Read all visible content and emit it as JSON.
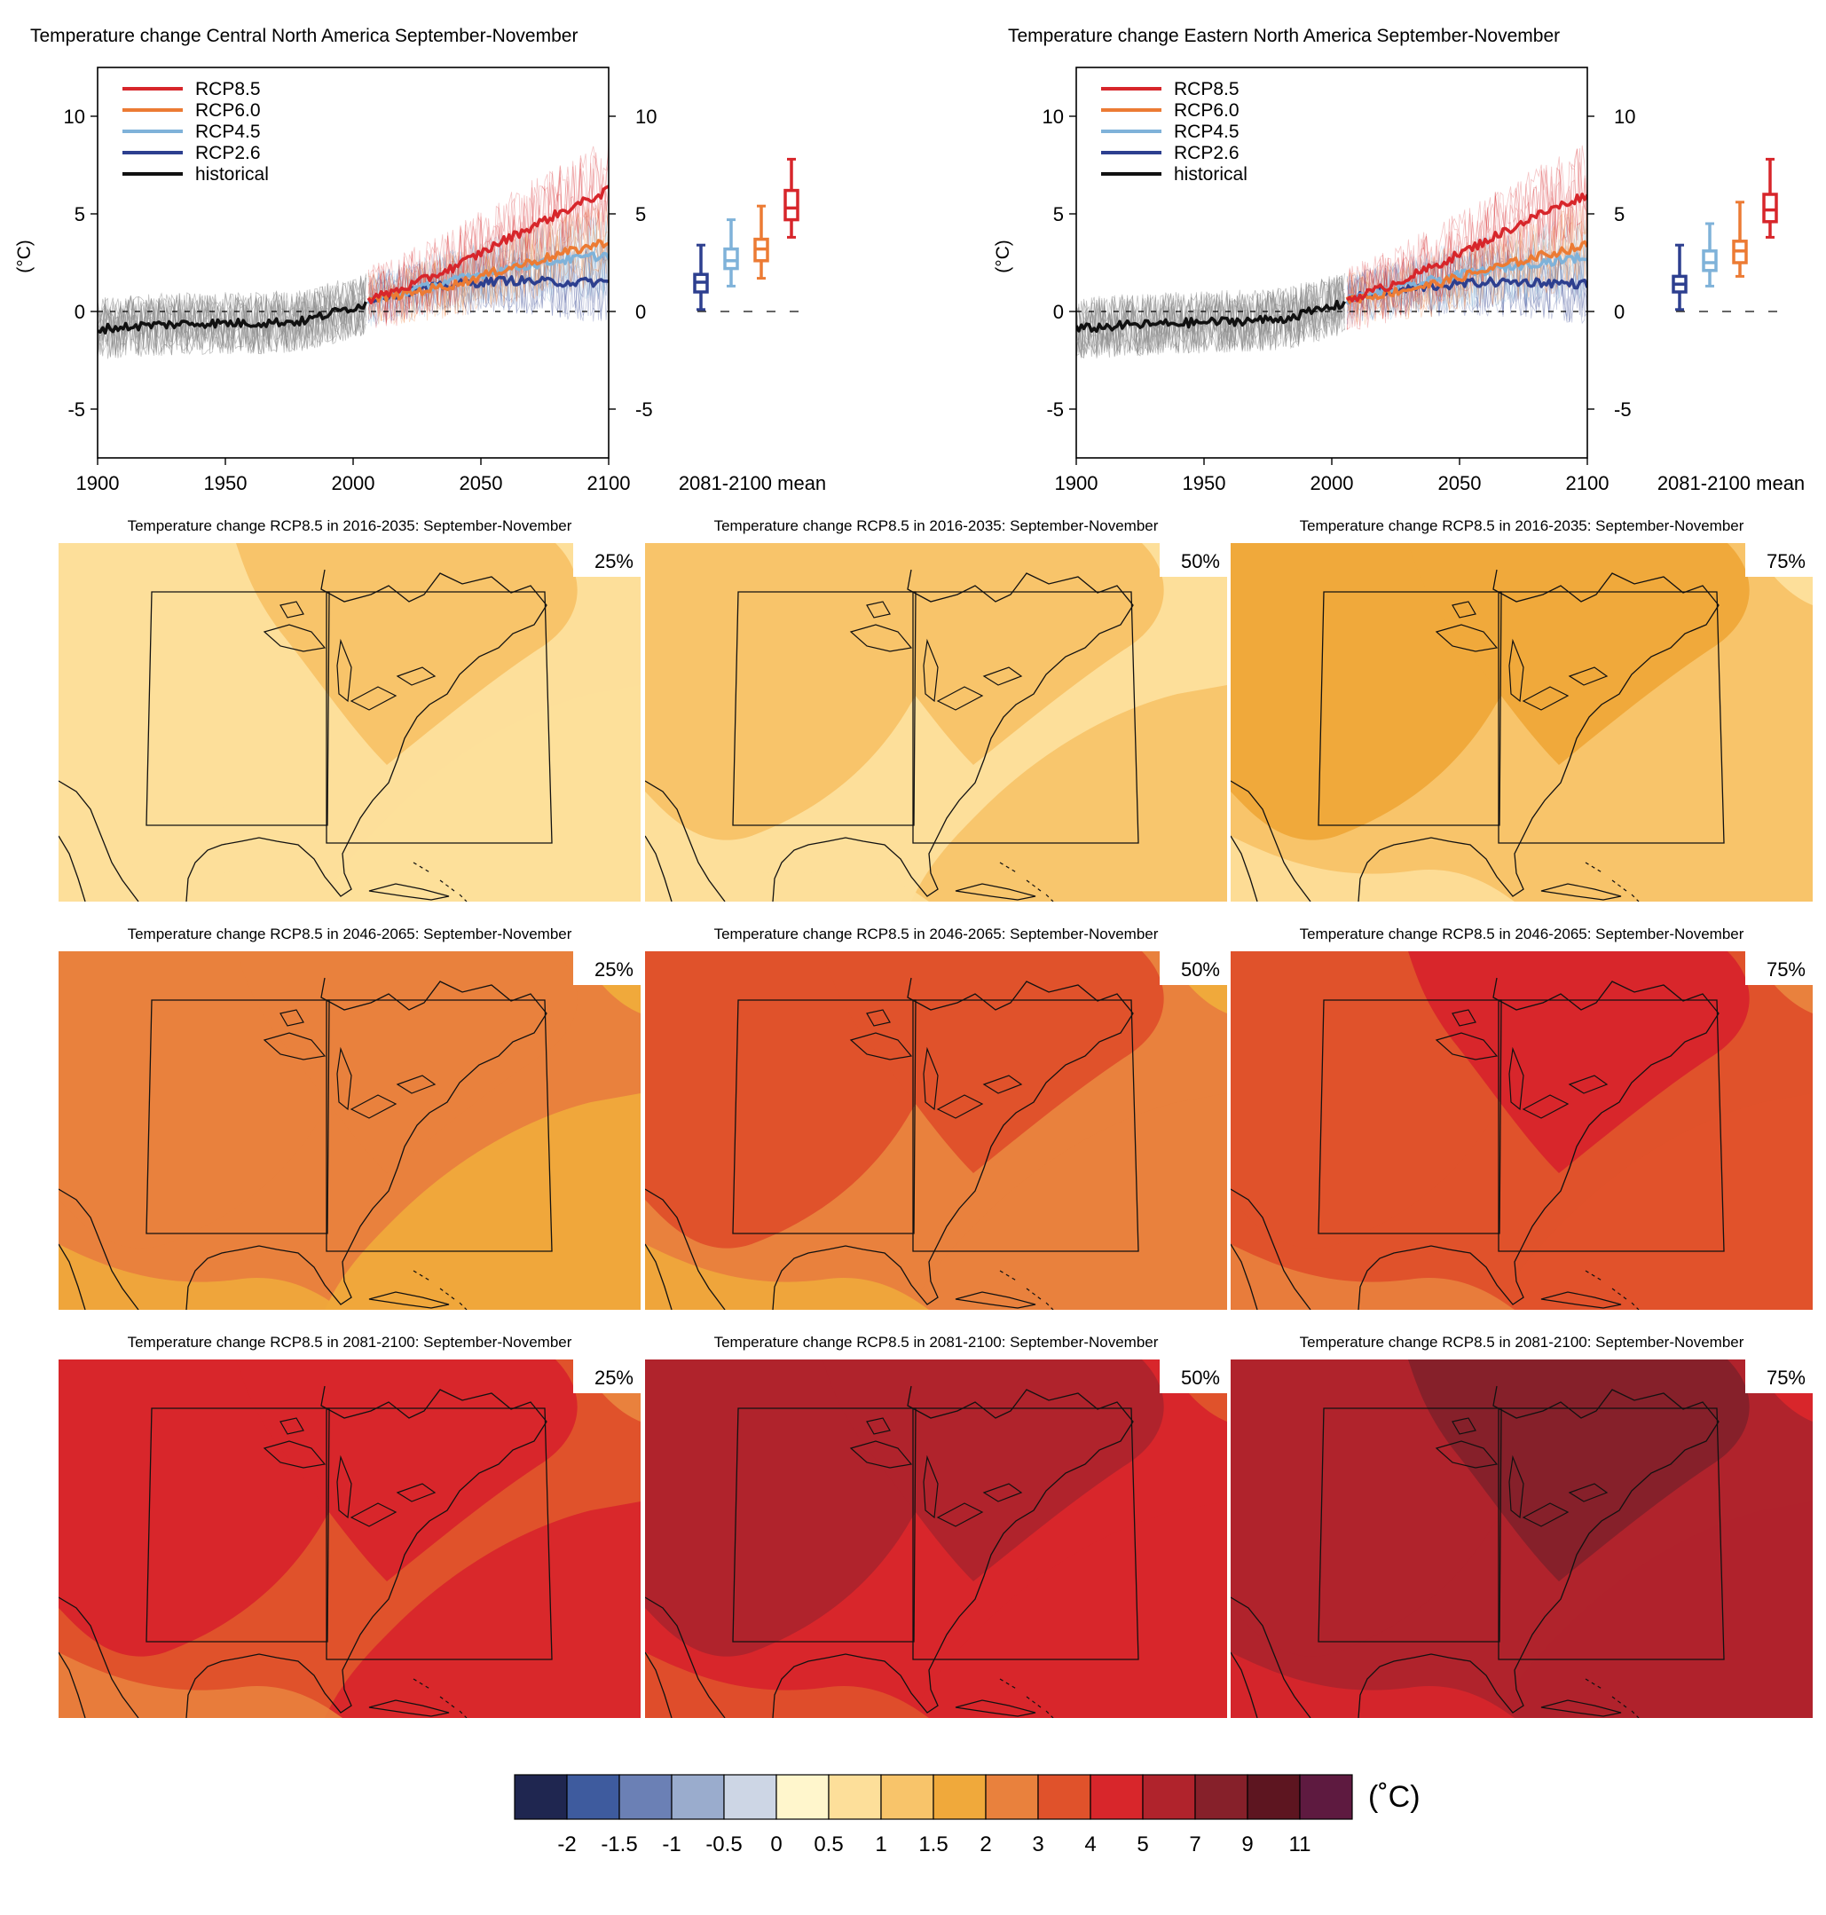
{
  "colors": {
    "rcp85": "#d7262b",
    "rcp60": "#ec7b34",
    "rcp45": "#7fb2d9",
    "rcp26": "#2d3f8f",
    "historical": "#111111",
    "historical_spread": "#8a8a8a"
  },
  "chart_data": [
    {
      "type": "line",
      "title": "Temperature change Central North America September-November",
      "ylabel": "(°C)",
      "xlim": [
        1900,
        2100
      ],
      "ylim": [
        -7.5,
        12.5
      ],
      "xticks": [
        "1900",
        "1950",
        "2000",
        "2050",
        "2100"
      ],
      "yticks": [
        "-5",
        "0",
        "5",
        "10"
      ],
      "legend": {
        "placement": "top-left",
        "entries": [
          "RCP8.5",
          "RCP6.0",
          "RCP4.5",
          "RCP2.6",
          "historical"
        ]
      },
      "zero_line": true,
      "series": [
        {
          "name": "historical",
          "color": "#111111",
          "x": [
            1900,
            1920,
            1940,
            1960,
            1980,
            2005
          ],
          "y": [
            -0.9,
            -0.7,
            -0.6,
            -0.6,
            -0.5,
            0.4
          ]
        },
        {
          "name": "RCP2.6",
          "color": "#2d3f8f",
          "x": [
            2006,
            2020,
            2040,
            2060,
            2080,
            2100
          ],
          "y": [
            0.6,
            1.0,
            1.4,
            1.6,
            1.5,
            1.5
          ]
        },
        {
          "name": "RCP4.5",
          "color": "#7fb2d9",
          "x": [
            2006,
            2020,
            2040,
            2060,
            2080,
            2100
          ],
          "y": [
            0.6,
            1.0,
            1.6,
            2.2,
            2.6,
            2.9
          ]
        },
        {
          "name": "RCP6.0",
          "color": "#ec7b34",
          "x": [
            2006,
            2020,
            2040,
            2060,
            2080,
            2100
          ],
          "y": [
            0.6,
            0.9,
            1.4,
            2.2,
            2.9,
            3.6
          ]
        },
        {
          "name": "RCP8.5",
          "color": "#d7262b",
          "x": [
            2006,
            2020,
            2040,
            2060,
            2080,
            2100
          ],
          "y": [
            0.6,
            1.2,
            2.3,
            3.7,
            5.0,
            6.2
          ]
        }
      ],
      "boxplots": {
        "label": "2081-2100 mean",
        "items": [
          {
            "name": "RCP2.6",
            "color": "#2d3f8f",
            "min": 0.1,
            "q1": 1.0,
            "median": 1.5,
            "q3": 1.9,
            "max": 3.4
          },
          {
            "name": "RCP4.5",
            "color": "#7fb2d9",
            "min": 1.3,
            "q1": 2.2,
            "median": 2.6,
            "q3": 3.2,
            "max": 4.7
          },
          {
            "name": "RCP6.0",
            "color": "#ec7b34",
            "min": 1.7,
            "q1": 2.6,
            "median": 3.2,
            "q3": 3.7,
            "max": 5.4
          },
          {
            "name": "RCP8.5",
            "color": "#d7262b",
            "min": 3.8,
            "q1": 4.7,
            "median": 5.3,
            "q3": 6.2,
            "max": 7.8
          }
        ]
      }
    },
    {
      "type": "line",
      "title": "Temperature change Eastern North America September-November",
      "ylabel": "(°C)",
      "xlim": [
        1900,
        2100
      ],
      "ylim": [
        -7.5,
        12.5
      ],
      "xticks": [
        "1900",
        "1950",
        "2000",
        "2050",
        "2100"
      ],
      "yticks": [
        "-5",
        "0",
        "5",
        "10"
      ],
      "legend": {
        "placement": "top-left",
        "entries": [
          "RCP8.5",
          "RCP6.0",
          "RCP4.5",
          "RCP2.6",
          "historical"
        ]
      },
      "zero_line": true,
      "series": [
        {
          "name": "historical",
          "color": "#111111",
          "x": [
            1900,
            1920,
            1940,
            1960,
            1980,
            2005
          ],
          "y": [
            -0.9,
            -0.7,
            -0.6,
            -0.5,
            -0.4,
            0.4
          ]
        },
        {
          "name": "RCP2.6",
          "color": "#2d3f8f",
          "x": [
            2006,
            2020,
            2040,
            2060,
            2080,
            2100
          ],
          "y": [
            0.6,
            1.0,
            1.3,
            1.5,
            1.5,
            1.4
          ]
        },
        {
          "name": "RCP4.5",
          "color": "#7fb2d9",
          "x": [
            2006,
            2020,
            2040,
            2060,
            2080,
            2100
          ],
          "y": [
            0.6,
            1.0,
            1.6,
            2.1,
            2.5,
            2.8
          ]
        },
        {
          "name": "RCP6.0",
          "color": "#ec7b34",
          "x": [
            2006,
            2020,
            2040,
            2060,
            2080,
            2100
          ],
          "y": [
            0.6,
            0.9,
            1.4,
            2.1,
            2.8,
            3.4
          ]
        },
        {
          "name": "RCP8.5",
          "color": "#d7262b",
          "x": [
            2006,
            2020,
            2040,
            2060,
            2080,
            2100
          ],
          "y": [
            0.6,
            1.2,
            2.3,
            3.6,
            4.9,
            6.0
          ]
        }
      ],
      "boxplots": {
        "label": "2081-2100 mean",
        "items": [
          {
            "name": "RCP2.6",
            "color": "#2d3f8f",
            "min": 0.1,
            "q1": 1.0,
            "median": 1.4,
            "q3": 1.8,
            "max": 3.4
          },
          {
            "name": "RCP4.5",
            "color": "#7fb2d9",
            "min": 1.3,
            "q1": 2.1,
            "median": 2.5,
            "q3": 3.1,
            "max": 4.5
          },
          {
            "name": "RCP6.0",
            "color": "#ec7b34",
            "min": 1.8,
            "q1": 2.5,
            "median": 3.1,
            "q3": 3.6,
            "max": 5.6
          },
          {
            "name": "RCP8.5",
            "color": "#d7262b",
            "min": 3.8,
            "q1": 4.6,
            "median": 5.2,
            "q3": 6.0,
            "max": 7.8
          }
        ]
      }
    },
    {
      "type": "heatmap",
      "panels": [
        {
          "title": "Temperature change RCP8.5 in 2016-2035: September-November",
          "percentile": "25%",
          "base": 6,
          "zones": [
            6,
            7,
            6,
            6
          ]
        },
        {
          "title": "Temperature change RCP8.5 in 2016-2035: September-November",
          "percentile": "50%",
          "base": 6,
          "zones": [
            7,
            7,
            7,
            6
          ]
        },
        {
          "title": "Temperature change RCP8.5 in 2016-2035: September-November",
          "percentile": "75%",
          "base": 7,
          "zones": [
            8,
            8,
            7,
            6
          ]
        },
        {
          "title": "Temperature change RCP8.5 in 2046-2065: September-November",
          "percentile": "25%",
          "base": 9,
          "zones": [
            9,
            9,
            8,
            8
          ]
        },
        {
          "title": "Temperature change RCP8.5 in 2046-2065: September-November",
          "percentile": "50%",
          "base": 9,
          "zones": [
            10,
            10,
            9,
            8
          ]
        },
        {
          "title": "Temperature change RCP8.5 in 2046-2065: September-November",
          "percentile": "75%",
          "base": 10,
          "zones": [
            10,
            11,
            10,
            9
          ]
        },
        {
          "title": "Temperature change RCP8.5 in 2081-2100: September-November",
          "percentile": "25%",
          "base": 10,
          "zones": [
            11,
            11,
            11,
            9
          ]
        },
        {
          "title": "Temperature change RCP8.5 in 2081-2100: September-November",
          "percentile": "50%",
          "base": 11,
          "zones": [
            12,
            12,
            11,
            10
          ]
        },
        {
          "title": "Temperature change RCP8.5 in 2081-2100: September-November",
          "percentile": "75%",
          "base": 12,
          "zones": [
            12,
            13,
            12,
            11
          ]
        }
      ],
      "colorbar": {
        "unit": "(˚C)",
        "colors": [
          "#1f2650",
          "#3e5b9e",
          "#6b80b5",
          "#9aaccd",
          "#cdd6e5",
          "#fff6cc",
          "#fddf9a",
          "#f8c46a",
          "#f0a93b",
          "#e9813d",
          "#e0522b",
          "#d8262b",
          "#b0232c",
          "#86202a",
          "#5d1520",
          "#5e1a40"
        ],
        "labels": [
          "-2",
          "-1.5",
          "-1",
          "-0.5",
          "0",
          "0.5",
          "1",
          "1.5",
          "2",
          "3",
          "4",
          "5",
          "7",
          "9",
          "11"
        ]
      }
    }
  ]
}
